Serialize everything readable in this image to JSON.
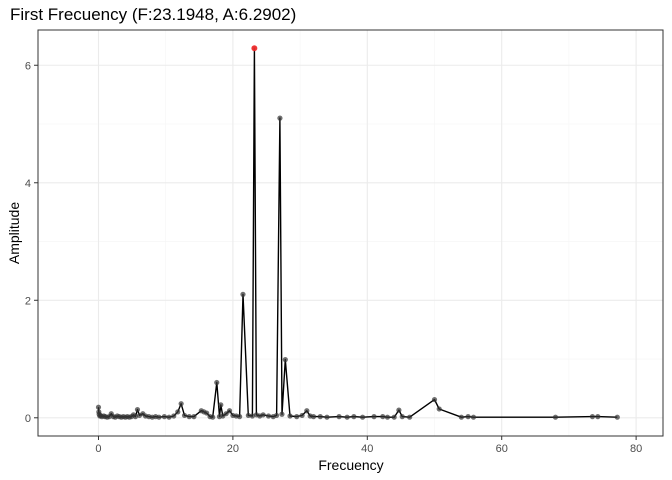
{
  "chart_data": {
    "type": "line",
    "title": "First Frecuency (F:23.1948, A:6.2902)",
    "xlabel": "Frecuency",
    "ylabel": "Amplitude",
    "xlim": [
      -9,
      84
    ],
    "ylim": [
      -0.31,
      6.6
    ],
    "xticks": [
      0,
      20,
      40,
      60,
      80
    ],
    "yticks": [
      0,
      2,
      4,
      6
    ],
    "grid": true,
    "legend": "none",
    "colors": {
      "line": "#000000",
      "point": "#333333",
      "highlight": "#ff2a2a",
      "panel_border": "#333333",
      "grid_major": "#ebebeb",
      "grid_minor": "#f5f5f5"
    },
    "highlight": {
      "x": 23.1948,
      "y": 6.2902
    },
    "series": [
      {
        "points": [
          [
            0.0,
            0.18
          ],
          [
            0.05,
            0.1
          ],
          [
            0.1,
            0.06
          ],
          [
            0.2,
            0.03
          ],
          [
            0.3,
            0.04
          ],
          [
            0.5,
            0.02
          ],
          [
            0.8,
            0.03
          ],
          [
            1.0,
            0.02
          ],
          [
            1.3,
            0.01
          ],
          [
            1.6,
            0.02
          ],
          [
            1.9,
            0.07
          ],
          [
            2.2,
            0.02
          ],
          [
            2.5,
            0.01
          ],
          [
            2.8,
            0.03
          ],
          [
            3.1,
            0.02
          ],
          [
            3.4,
            0.01
          ],
          [
            3.7,
            0.02
          ],
          [
            4.0,
            0.01
          ],
          [
            4.3,
            0.02
          ],
          [
            4.6,
            0.01
          ],
          [
            4.9,
            0.02
          ],
          [
            5.2,
            0.05
          ],
          [
            5.5,
            0.02
          ],
          [
            5.8,
            0.14
          ],
          [
            6.1,
            0.04
          ],
          [
            6.6,
            0.07
          ],
          [
            7.0,
            0.03
          ],
          [
            7.5,
            0.02
          ],
          [
            8.0,
            0.01
          ],
          [
            8.5,
            0.02
          ],
          [
            9.0,
            0.01
          ],
          [
            9.8,
            0.02
          ],
          [
            10.5,
            0.01
          ],
          [
            11.2,
            0.03
          ],
          [
            11.8,
            0.1
          ],
          [
            12.3,
            0.24
          ],
          [
            12.8,
            0.04
          ],
          [
            13.5,
            0.02
          ],
          [
            14.2,
            0.02
          ],
          [
            15.3,
            0.12
          ],
          [
            15.7,
            0.1
          ],
          [
            16.1,
            0.08
          ],
          [
            16.6,
            0.02
          ],
          [
            17.0,
            0.01
          ],
          [
            17.6,
            0.6
          ],
          [
            18.0,
            0.02
          ],
          [
            18.2,
            0.22
          ],
          [
            18.5,
            0.03
          ],
          [
            19.0,
            0.07
          ],
          [
            19.5,
            0.12
          ],
          [
            20.0,
            0.04
          ],
          [
            20.5,
            0.03
          ],
          [
            21.0,
            0.02
          ],
          [
            21.5,
            2.1
          ],
          [
            22.3,
            0.04
          ],
          [
            22.9,
            0.03
          ],
          [
            23.1948,
            6.2902
          ],
          [
            23.5,
            0.05
          ],
          [
            24.0,
            0.03
          ],
          [
            24.5,
            0.05
          ],
          [
            25.3,
            0.03
          ],
          [
            26.0,
            0.02
          ],
          [
            26.5,
            0.04
          ],
          [
            27.0,
            5.1
          ],
          [
            27.3,
            0.06
          ],
          [
            27.8,
            0.99
          ],
          [
            28.5,
            0.03
          ],
          [
            29.5,
            0.02
          ],
          [
            30.3,
            0.04
          ],
          [
            31.0,
            0.12
          ],
          [
            31.5,
            0.03
          ],
          [
            32.0,
            0.02
          ],
          [
            33.0,
            0.02
          ],
          [
            34.0,
            0.01
          ],
          [
            35.8,
            0.02
          ],
          [
            37.0,
            0.01
          ],
          [
            38.0,
            0.02
          ],
          [
            39.3,
            0.01
          ],
          [
            41.0,
            0.02
          ],
          [
            42.3,
            0.02
          ],
          [
            43.0,
            0.01
          ],
          [
            44.0,
            0.01
          ],
          [
            44.7,
            0.13
          ],
          [
            45.2,
            0.02
          ],
          [
            46.3,
            0.01
          ],
          [
            50.0,
            0.31
          ],
          [
            50.7,
            0.15
          ],
          [
            54.0,
            0.01
          ],
          [
            55.0,
            0.02
          ],
          [
            55.8,
            0.01
          ],
          [
            68.0,
            0.01
          ],
          [
            73.5,
            0.02
          ],
          [
            74.3,
            0.02
          ],
          [
            77.2,
            0.01
          ]
        ]
      }
    ]
  }
}
